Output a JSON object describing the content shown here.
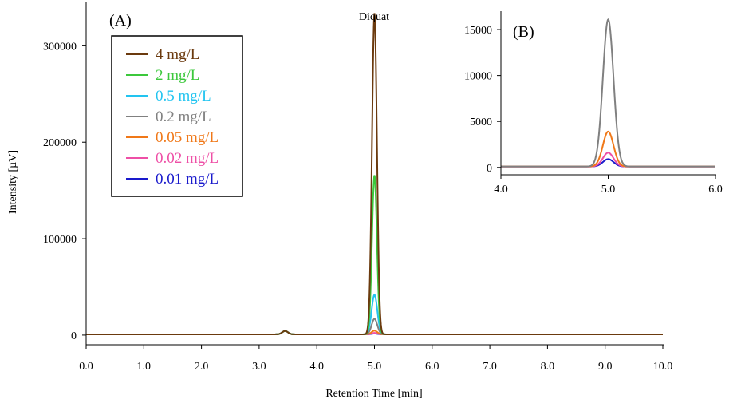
{
  "chart_data": [
    {
      "panel": "A",
      "type": "line",
      "panel_label": "(A)",
      "xlabel": "Retention Time [min]",
      "ylabel": "Intensity [µV]",
      "xlim": [
        0,
        10
      ],
      "ylim": [
        -10000,
        345000
      ],
      "xticks": [
        "0.0",
        "1.0",
        "2.0",
        "3.0",
        "4.0",
        "5.0",
        "6.0",
        "7.0",
        "8.0",
        "9.0",
        "10.0"
      ],
      "yticks": [
        "0",
        "100000",
        "200000",
        "300000"
      ],
      "ytick_values": [
        0,
        100000,
        200000,
        300000
      ],
      "annotation": {
        "text": "Diquat",
        "x": 5.0,
        "y": 345000
      },
      "grid": false,
      "legend_position": "top-left",
      "series": [
        {
          "name": "4 mg/L",
          "color": "#6b3a0e",
          "peak_x": 5.0,
          "peak_y": 333000,
          "width": 0.06
        },
        {
          "name": "2 mg/L",
          "color": "#3cc83c",
          "peak_x": 5.0,
          "peak_y": 165000,
          "width": 0.06
        },
        {
          "name": "0.5 mg/L",
          "color": "#22c4f0",
          "peak_x": 5.0,
          "peak_y": 41000,
          "width": 0.07
        },
        {
          "name": "0.2 mg/L",
          "color": "#808080",
          "peak_x": 5.0,
          "peak_y": 16000,
          "width": 0.07
        },
        {
          "name": "0.05 mg/L",
          "color": "#f07818",
          "peak_x": 5.0,
          "peak_y": 3800,
          "width": 0.07
        },
        {
          "name": "0.02 mg/L",
          "color": "#ee4fa6",
          "peak_x": 5.0,
          "peak_y": 1500,
          "width": 0.07
        },
        {
          "name": "0.01 mg/L",
          "color": "#1a1acc",
          "peak_x": 5.0,
          "peak_y": 800,
          "width": 0.07
        }
      ],
      "baseline": 800,
      "minor_bump": {
        "x": 3.45,
        "y": 3500
      }
    },
    {
      "panel": "B",
      "type": "line",
      "panel_label": "(B)",
      "xlim": [
        4.0,
        6.0
      ],
      "ylim": [
        -800,
        17000
      ],
      "xticks": [
        "4.0",
        "5.0",
        "6.0"
      ],
      "yticks": [
        "0",
        "5000",
        "10000",
        "15000"
      ],
      "ytick_values": [
        0,
        5000,
        10000,
        15000
      ],
      "series": [
        {
          "name": "0.2 mg/L",
          "color": "#808080",
          "peak_x": 5.0,
          "peak_y": 16000,
          "width": 0.07
        },
        {
          "name": "0.05 mg/L",
          "color": "#f07818",
          "peak_x": 5.0,
          "peak_y": 3800,
          "width": 0.07
        },
        {
          "name": "0.02 mg/L",
          "color": "#ee4fa6",
          "peak_x": 5.0,
          "peak_y": 1500,
          "width": 0.07
        },
        {
          "name": "0.01 mg/L",
          "color": "#1a1acc",
          "peak_x": 5.0,
          "peak_y": 800,
          "width": 0.07
        }
      ],
      "baseline": 100
    }
  ]
}
